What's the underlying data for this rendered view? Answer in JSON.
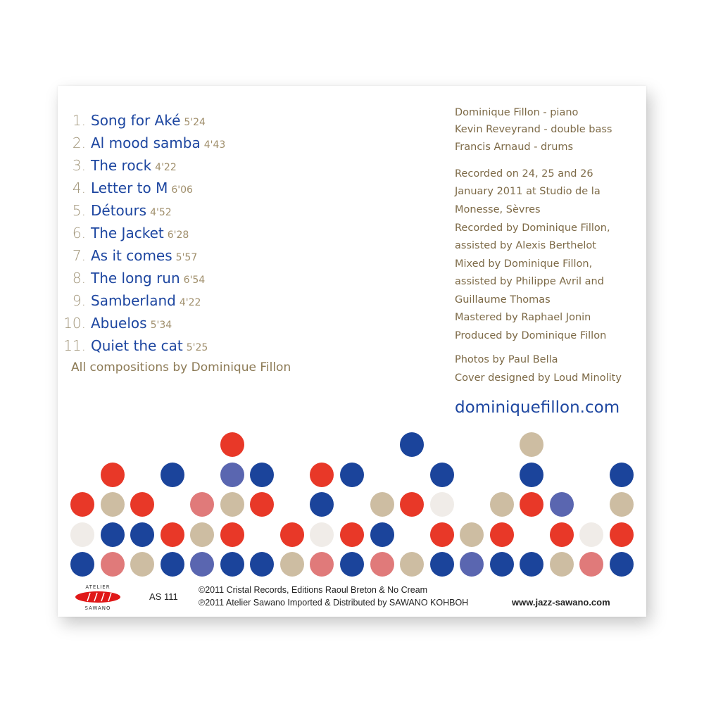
{
  "tracks": [
    {
      "num": "1.",
      "title": "Song for Aké",
      "duration": "5'24"
    },
    {
      "num": "2.",
      "title": "Al mood samba",
      "duration": "4'43"
    },
    {
      "num": "3.",
      "title": "The rock",
      "duration": "4'22"
    },
    {
      "num": "4.",
      "title": "Letter to M",
      "duration": "6'06"
    },
    {
      "num": "5.",
      "title": "Détours",
      "duration": "4'52"
    },
    {
      "num": "6.",
      "title": "The Jacket",
      "duration": "6'28"
    },
    {
      "num": "7.",
      "title": "As it comes",
      "duration": "5'57"
    },
    {
      "num": "8.",
      "title": "The long run",
      "duration": "6'54"
    },
    {
      "num": "9.",
      "title": "Samberland",
      "duration": "4'22"
    },
    {
      "num": "10.",
      "title": "Abuelos",
      "duration": "5'34"
    },
    {
      "num": "11.",
      "title": "Quiet the cat",
      "duration": "5'25"
    }
  ],
  "compositions_credit": "All compositions by Dominique Fillon",
  "credits": [
    {
      "text": "Dominique Fillon - piano"
    },
    {
      "text": "Kevin Reveyrand - double bass"
    },
    {
      "text": "Francis Arnaud - drums"
    },
    {
      "text": "Recorded on 24, 25 and 26"
    },
    {
      "text": "January 2011 at Studio de la"
    },
    {
      "text": "Monesse, Sèvres"
    },
    {
      "text": "Recorded by Dominique Fillon,"
    },
    {
      "text": "assisted by Alexis Berthelot"
    },
    {
      "text": "Mixed by Dominique Fillon,"
    },
    {
      "text": "assisted by Philippe Avril and"
    },
    {
      "text": "Guillaume Thomas"
    },
    {
      "text": "Mastered by Raphael Jonin"
    },
    {
      "text": "Produced by Dominique Fillon"
    },
    {
      "text": "Photos by Paul Bella"
    },
    {
      "text": "Cover designed by Loud Minolity"
    }
  ],
  "website": "dominiquefillon.com",
  "dot_pattern": [
    ".....R.....B...T...",
    ".R.B.PB.RB..B..B..B",
    "RTR.KTR.B.TRW.TRP.T",
    "WBBRTR.RWRB.RTR.RWR",
    "BKTBPBBTKBKTBPBBTKB"
  ],
  "dot_colors": {
    "R": "#e83828",
    "B": "#1b449b",
    "T": "#cdbda2",
    "P": "#5a66b0",
    "K": "#e07a7a",
    "W": "#f0ece8"
  },
  "footer": {
    "logo_top": "ATELIER",
    "logo_bottom": "SAWANO",
    "catalog": "AS 111",
    "copyright1": "©2011 Cristal Records, Editions Raoul Breton & No Cream",
    "copyright2": "℗2011 Atelier Sawano  Imported & Distributed by SAWANO KOHBOH",
    "site": "www.jazz-sawano.com"
  }
}
